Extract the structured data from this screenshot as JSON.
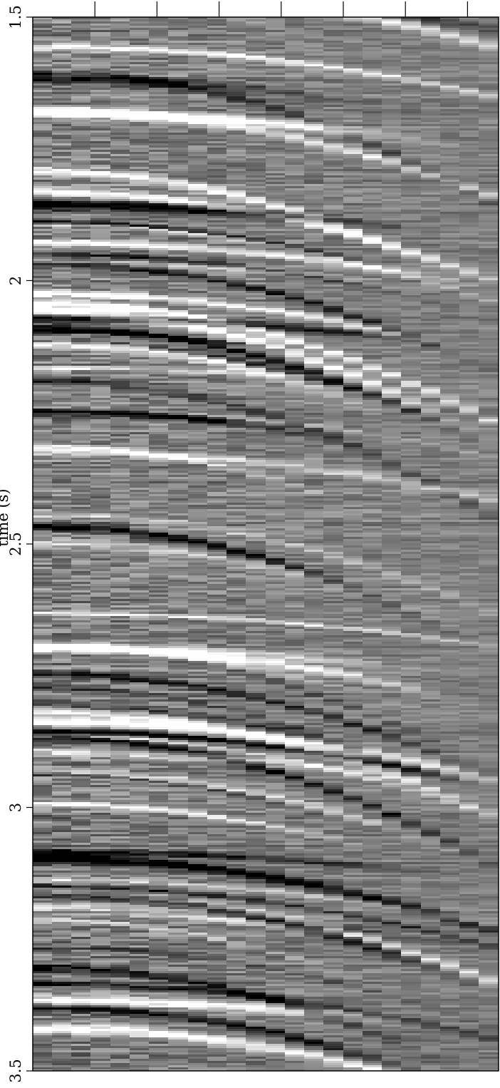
{
  "chart_data": {
    "type": "heatmap",
    "colormap": "grayscale",
    "orientation": "time axis vertical, labels rotated",
    "y_axis": {
      "label": "time (s)",
      "range": [
        1.5,
        3.5
      ],
      "ticks": [
        1.5,
        2,
        2.5,
        3,
        3.5
      ],
      "tick_labels": [
        "1.5",
        "2",
        "2.5",
        "3",
        "3.5"
      ]
    },
    "x_axis": {
      "label": "",
      "tick_count": 7,
      "tick_labels": []
    },
    "traces": 24,
    "grid": false,
    "legend": "none"
  }
}
